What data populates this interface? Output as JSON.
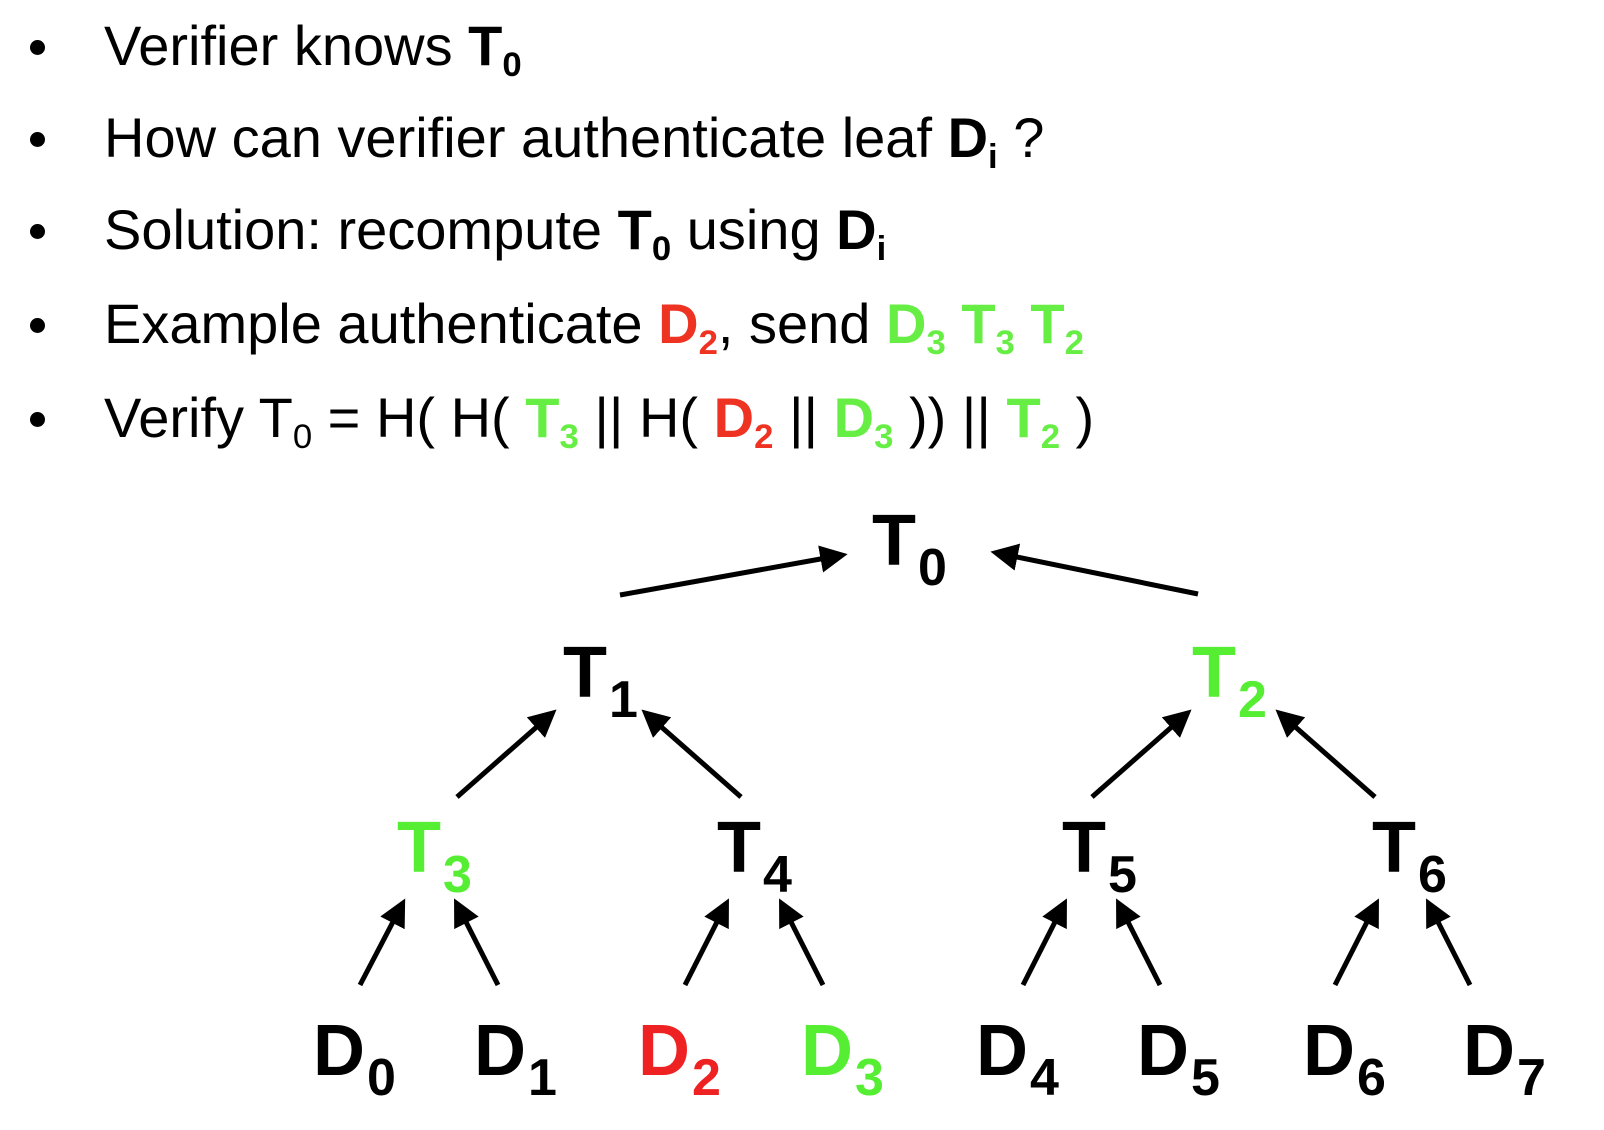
{
  "bullets": [
    {
      "parts": [
        {
          "t": "Verifier knows "
        },
        {
          "t": "T",
          "b": true
        },
        {
          "t": "0",
          "b": true,
          "sub": true
        }
      ]
    },
    {
      "parts": [
        {
          "t": "How can verifier authenticate leaf "
        },
        {
          "t": "D",
          "b": true
        },
        {
          "t": "i",
          "b": true,
          "sub": true
        },
        {
          "t": " ?"
        }
      ]
    },
    {
      "parts": [
        {
          "t": "Solution: recompute "
        },
        {
          "t": "T",
          "b": true
        },
        {
          "t": "0",
          "b": true,
          "sub": true
        },
        {
          "t": " using "
        },
        {
          "t": "D",
          "b": true
        },
        {
          "t": "i",
          "b": true,
          "sub": true
        }
      ]
    },
    {
      "parts": [
        {
          "t": "Example authenticate "
        },
        {
          "t": "D",
          "b": true,
          "c": "red"
        },
        {
          "t": "2",
          "b": true,
          "sub": true,
          "c": "red"
        },
        {
          "t": ", send "
        },
        {
          "t": "D",
          "b": true,
          "c": "green"
        },
        {
          "t": "3",
          "b": true,
          "sub": true,
          "c": "green"
        },
        {
          "t": " T",
          "b": true,
          "c": "green"
        },
        {
          "t": "3",
          "b": true,
          "sub": true,
          "c": "green"
        },
        {
          "t": " T",
          "b": true,
          "c": "green"
        },
        {
          "t": "2",
          "b": true,
          "sub": true,
          "c": "green"
        }
      ]
    },
    {
      "parts": [
        {
          "t": "Verify T"
        },
        {
          "t": "0",
          "sub": true
        },
        {
          "t": " = H( H( "
        },
        {
          "t": "T",
          "b": true,
          "c": "green"
        },
        {
          "t": "3",
          "b": true,
          "sub": true,
          "c": "green"
        },
        {
          "t": " || H( "
        },
        {
          "t": "D",
          "b": true,
          "c": "red"
        },
        {
          "t": "2",
          "b": true,
          "sub": true,
          "c": "red"
        },
        {
          "t": " || "
        },
        {
          "t": "D",
          "b": true,
          "c": "green"
        },
        {
          "t": "3",
          "b": true,
          "sub": true,
          "c": "green"
        },
        {
          "t": " )) || "
        },
        {
          "t": "T",
          "b": true,
          "c": "green"
        },
        {
          "t": "2",
          "b": true,
          "sub": true,
          "c": "green"
        },
        {
          "t": " )"
        }
      ]
    }
  ],
  "colors": {
    "highlight_red": "#ee2222",
    "highlight_green": "#55ee33",
    "default": "#000000"
  },
  "tree": {
    "nodes": [
      {
        "id": "T0",
        "letter": "T",
        "index": "0",
        "color": "black"
      },
      {
        "id": "T1",
        "letter": "T",
        "index": "1",
        "color": "black"
      },
      {
        "id": "T2",
        "letter": "T",
        "index": "2",
        "color": "green"
      },
      {
        "id": "T3",
        "letter": "T",
        "index": "3",
        "color": "green"
      },
      {
        "id": "T4",
        "letter": "T",
        "index": "4",
        "color": "black"
      },
      {
        "id": "T5",
        "letter": "T",
        "index": "5",
        "color": "black"
      },
      {
        "id": "T6",
        "letter": "T",
        "index": "6",
        "color": "black"
      },
      {
        "id": "D0",
        "letter": "D",
        "index": "0",
        "color": "black"
      },
      {
        "id": "D1",
        "letter": "D",
        "index": "1",
        "color": "black"
      },
      {
        "id": "D2",
        "letter": "D",
        "index": "2",
        "color": "red"
      },
      {
        "id": "D3",
        "letter": "D",
        "index": "3",
        "color": "green"
      },
      {
        "id": "D4",
        "letter": "D",
        "index": "4",
        "color": "black"
      },
      {
        "id": "D5",
        "letter": "D",
        "index": "5",
        "color": "black"
      },
      {
        "id": "D6",
        "letter": "D",
        "index": "6",
        "color": "black"
      },
      {
        "id": "D7",
        "letter": "D",
        "index": "7",
        "color": "black"
      }
    ],
    "edges": [
      {
        "from": "T1",
        "to": "T0"
      },
      {
        "from": "T2",
        "to": "T0"
      },
      {
        "from": "T3",
        "to": "T1"
      },
      {
        "from": "T4",
        "to": "T1"
      },
      {
        "from": "T5",
        "to": "T2"
      },
      {
        "from": "T6",
        "to": "T2"
      },
      {
        "from": "D0",
        "to": "T3"
      },
      {
        "from": "D1",
        "to": "T3"
      },
      {
        "from": "D2",
        "to": "T4"
      },
      {
        "from": "D3",
        "to": "T4"
      },
      {
        "from": "D4",
        "to": "T5"
      },
      {
        "from": "D5",
        "to": "T5"
      },
      {
        "from": "D6",
        "to": "T6"
      },
      {
        "from": "D7",
        "to": "T6"
      }
    ]
  }
}
